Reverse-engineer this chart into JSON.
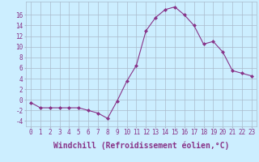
{
  "x": [
    0,
    1,
    2,
    3,
    4,
    5,
    6,
    7,
    8,
    9,
    10,
    11,
    12,
    13,
    14,
    15,
    16,
    17,
    18,
    19,
    20,
    21,
    22,
    23
  ],
  "y": [
    -0.5,
    -1.5,
    -1.5,
    -1.5,
    -1.5,
    -1.5,
    -2.0,
    -2.5,
    -3.5,
    -0.2,
    3.5,
    6.5,
    13.0,
    15.5,
    17.0,
    17.5,
    16.0,
    14.0,
    10.5,
    11.0,
    9.0,
    5.5,
    5.0,
    4.5
  ],
  "line_color": "#883388",
  "marker": "D",
  "marker_size": 2,
  "bg_color": "#cceeff",
  "grid_color": "#aabbcc",
  "xlabel": "Windchill (Refroidissement éolien,°C)",
  "xlabel_color": "#883388",
  "ylabel_ticks": [
    -4,
    -2,
    0,
    2,
    4,
    6,
    8,
    10,
    12,
    14,
    16
  ],
  "ylim": [
    -5.0,
    18.5
  ],
  "xlim": [
    -0.5,
    23.5
  ],
  "tick_label_color": "#883388",
  "tick_label_size": 5.5,
  "xlabel_size": 7.0
}
